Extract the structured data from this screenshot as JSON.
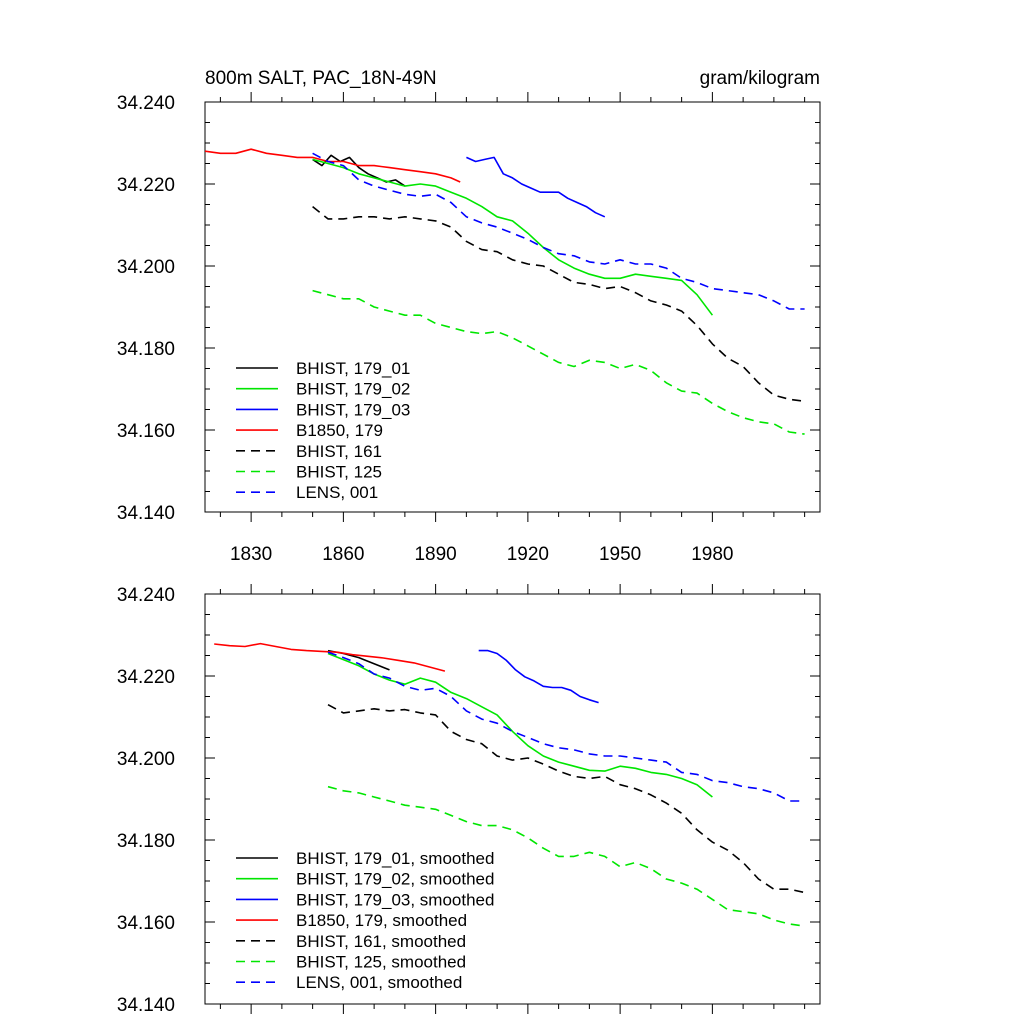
{
  "chart_data": [
    {
      "type": "line",
      "title_left": "800m SALT, PAC_18N-49N",
      "title_right": "gram/kilogram",
      "xlabel": "",
      "ylabel": "",
      "xlim": [
        1815,
        2015
      ],
      "ylim": [
        34.14,
        34.24
      ],
      "xticks": [
        1830,
        1860,
        1890,
        1920,
        1950,
        1980
      ],
      "xtick_labels": [
        "1830",
        "1860",
        "1890",
        "1920",
        "1950",
        "1980"
      ],
      "yticks": [
        34.14,
        34.16,
        34.18,
        34.2,
        34.22,
        34.24
      ],
      "ytick_labels": [
        "34.140",
        "34.160",
        "34.180",
        "34.200",
        "34.220",
        "34.240"
      ],
      "grid": false,
      "legend_position": "bottom-left",
      "series": [
        {
          "name": "BHIST, 179_01",
          "color": "#000000",
          "dash": "solid",
          "x": [
            1850,
            1853,
            1856,
            1859,
            1862,
            1865,
            1868,
            1871,
            1874,
            1877,
            1880
          ],
          "y": [
            34.226,
            34.2245,
            34.227,
            34.2255,
            34.2265,
            34.224,
            34.2225,
            34.2215,
            34.2205,
            34.221,
            34.2195
          ]
        },
        {
          "name": "BHIST, 179_02",
          "color": "#00e600",
          "dash": "solid",
          "x": [
            1850,
            1855,
            1860,
            1865,
            1870,
            1875,
            1880,
            1885,
            1890,
            1895,
            1900,
            1905,
            1910,
            1915,
            1920,
            1925,
            1930,
            1935,
            1940,
            1945,
            1950,
            1955,
            1960,
            1965,
            1970,
            1975,
            1980
          ],
          "y": [
            34.226,
            34.225,
            34.224,
            34.2225,
            34.2215,
            34.2205,
            34.2195,
            34.22,
            34.2195,
            34.218,
            34.2165,
            34.2145,
            34.212,
            34.211,
            34.208,
            34.2045,
            34.2015,
            34.1995,
            34.198,
            34.197,
            34.197,
            34.198,
            34.1975,
            34.197,
            34.1965,
            34.193,
            34.188
          ]
        },
        {
          "name": "BHIST, 179_03",
          "color": "#0000ff",
          "dash": "solid",
          "x": [
            1900,
            1903,
            1906,
            1909,
            1912,
            1915,
            1918,
            1921,
            1924,
            1927,
            1930,
            1933,
            1936,
            1939,
            1942,
            1945
          ],
          "y": [
            34.2265,
            34.2255,
            34.226,
            34.2265,
            34.2225,
            34.2215,
            34.22,
            34.219,
            34.218,
            34.218,
            34.218,
            34.2165,
            34.2155,
            34.2145,
            34.213,
            34.212
          ]
        },
        {
          "name": "B1850, 179",
          "color": "#ff0000",
          "dash": "solid",
          "x": [
            1815,
            1820,
            1825,
            1830,
            1835,
            1840,
            1845,
            1850,
            1855,
            1860,
            1865,
            1870,
            1875,
            1880,
            1885,
            1890,
            1895,
            1898
          ],
          "y": [
            34.228,
            34.2275,
            34.2275,
            34.2285,
            34.2275,
            34.227,
            34.2265,
            34.2265,
            34.2255,
            34.2255,
            34.2245,
            34.2245,
            34.224,
            34.2235,
            34.223,
            34.2225,
            34.2215,
            34.2205
          ]
        },
        {
          "name": "BHIST, 161",
          "color": "#000000",
          "dash": "dashed",
          "x": [
            1850,
            1855,
            1860,
            1865,
            1870,
            1875,
            1880,
            1885,
            1890,
            1895,
            1900,
            1905,
            1910,
            1915,
            1920,
            1925,
            1930,
            1935,
            1940,
            1945,
            1950,
            1955,
            1960,
            1965,
            1970,
            1975,
            1980,
            1985,
            1990,
            1995,
            2000,
            2005,
            2010
          ],
          "y": [
            34.2145,
            34.2115,
            34.2115,
            34.212,
            34.212,
            34.2115,
            34.212,
            34.2115,
            34.211,
            34.2095,
            34.206,
            34.204,
            34.2035,
            34.2015,
            34.2005,
            34.2,
            34.198,
            34.196,
            34.1955,
            34.1945,
            34.195,
            34.1935,
            34.1915,
            34.1905,
            34.189,
            34.1855,
            34.181,
            34.1775,
            34.1755,
            34.1715,
            34.1685,
            34.1675,
            34.167
          ]
        },
        {
          "name": "BHIST, 125",
          "color": "#00e600",
          "dash": "dashed",
          "x": [
            1850,
            1855,
            1860,
            1865,
            1870,
            1875,
            1880,
            1885,
            1890,
            1895,
            1900,
            1905,
            1910,
            1915,
            1920,
            1925,
            1930,
            1935,
            1940,
            1945,
            1950,
            1955,
            1960,
            1965,
            1970,
            1975,
            1980,
            1985,
            1990,
            1995,
            2000,
            2005,
            2010
          ],
          "y": [
            34.194,
            34.193,
            34.192,
            34.192,
            34.19,
            34.189,
            34.188,
            34.188,
            34.186,
            34.185,
            34.184,
            34.1835,
            34.184,
            34.1825,
            34.1805,
            34.1785,
            34.1765,
            34.1755,
            34.177,
            34.1765,
            34.175,
            34.176,
            34.1745,
            34.1715,
            34.1695,
            34.169,
            34.1665,
            34.1645,
            34.163,
            34.162,
            34.1615,
            34.1595,
            34.159
          ]
        },
        {
          "name": "LENS, 001",
          "color": "#0000ff",
          "dash": "dashed",
          "x": [
            1850,
            1855,
            1860,
            1865,
            1870,
            1875,
            1880,
            1885,
            1890,
            1895,
            1900,
            1905,
            1910,
            1915,
            1920,
            1925,
            1930,
            1935,
            1940,
            1945,
            1950,
            1955,
            1960,
            1965,
            1970,
            1975,
            1980,
            1985,
            1990,
            1995,
            2000,
            2005,
            2010
          ],
          "y": [
            34.2275,
            34.2255,
            34.2245,
            34.221,
            34.2195,
            34.2185,
            34.2175,
            34.217,
            34.2175,
            34.2155,
            34.212,
            34.2105,
            34.2095,
            34.208,
            34.2065,
            34.2045,
            34.203,
            34.2025,
            34.201,
            34.2005,
            34.2015,
            34.2005,
            34.2005,
            34.1995,
            34.197,
            34.196,
            34.1945,
            34.194,
            34.1935,
            34.193,
            34.1915,
            34.1895,
            34.1895
          ]
        }
      ]
    },
    {
      "type": "line",
      "title_left": "",
      "title_right": "",
      "xlabel": "",
      "ylabel": "",
      "xlim": [
        1815,
        2015
      ],
      "ylim": [
        34.14,
        34.24
      ],
      "xticks": [
        1830,
        1860,
        1890,
        1920,
        1950,
        1980
      ],
      "xtick_labels": [],
      "yticks": [
        34.14,
        34.16,
        34.18,
        34.2,
        34.22,
        34.24
      ],
      "ytick_labels": [
        "34.140",
        "34.160",
        "34.180",
        "34.200",
        "34.220",
        "34.240"
      ],
      "grid": false,
      "legend_position": "bottom-left",
      "series": [
        {
          "name": "BHIST, 179_01, smoothed",
          "color": "#000000",
          "dash": "solid",
          "x": [
            1855,
            1860,
            1865,
            1870,
            1875
          ],
          "y": [
            34.2262,
            34.2255,
            34.2245,
            34.223,
            34.2215
          ]
        },
        {
          "name": "BHIST, 179_02, smoothed",
          "color": "#00e600",
          "dash": "solid",
          "x": [
            1855,
            1860,
            1865,
            1870,
            1875,
            1880,
            1885,
            1890,
            1895,
            1900,
            1905,
            1910,
            1915,
            1920,
            1925,
            1930,
            1935,
            1940,
            1945,
            1950,
            1955,
            1960,
            1965,
            1970,
            1975,
            1980
          ],
          "y": [
            34.2255,
            34.224,
            34.2225,
            34.2205,
            34.219,
            34.218,
            34.2195,
            34.2185,
            34.216,
            34.2145,
            34.2125,
            34.2105,
            34.2065,
            34.203,
            34.2005,
            34.199,
            34.198,
            34.197,
            34.1968,
            34.198,
            34.1975,
            34.1965,
            34.196,
            34.195,
            34.1935,
            34.1905
          ]
        },
        {
          "name": "BHIST, 179_03, smoothed",
          "color": "#0000ff",
          "dash": "solid",
          "x": [
            1904,
            1907,
            1910,
            1913,
            1916,
            1919,
            1922,
            1925,
            1928,
            1931,
            1934,
            1937,
            1940,
            1943
          ],
          "y": [
            34.2262,
            34.2262,
            34.2255,
            34.2238,
            34.2215,
            34.2198,
            34.2188,
            34.2175,
            34.2172,
            34.2172,
            34.2165,
            34.215,
            34.2142,
            34.2135
          ]
        },
        {
          "name": "B1850, 179, smoothed",
          "color": "#ff0000",
          "dash": "solid",
          "x": [
            1818,
            1823,
            1828,
            1833,
            1838,
            1843,
            1848,
            1853,
            1858,
            1863,
            1868,
            1873,
            1878,
            1883,
            1888,
            1893
          ],
          "y": [
            34.2278,
            34.2274,
            34.2272,
            34.2279,
            34.2272,
            34.2265,
            34.2262,
            34.226,
            34.2258,
            34.2252,
            34.2248,
            34.2244,
            34.2238,
            34.2232,
            34.2222,
            34.2212
          ]
        },
        {
          "name": "BHIST, 161, smoothed",
          "color": "#000000",
          "dash": "dashed",
          "x": [
            1855,
            1860,
            1865,
            1870,
            1875,
            1880,
            1885,
            1890,
            1895,
            1900,
            1905,
            1910,
            1915,
            1920,
            1925,
            1930,
            1935,
            1940,
            1945,
            1950,
            1955,
            1960,
            1965,
            1970,
            1975,
            1980,
            1985,
            1990,
            1995,
            2000,
            2005,
            2010
          ],
          "y": [
            34.213,
            34.211,
            34.2115,
            34.212,
            34.2115,
            34.2118,
            34.211,
            34.2105,
            34.2065,
            34.2045,
            34.2035,
            34.2005,
            34.1995,
            34.2,
            34.1985,
            34.1968,
            34.1955,
            34.195,
            34.1955,
            34.1935,
            34.1925,
            34.191,
            34.189,
            34.1865,
            34.1825,
            34.1795,
            34.1775,
            34.1745,
            34.1705,
            34.168,
            34.168,
            34.1672
          ]
        },
        {
          "name": "BHIST, 125, smoothed",
          "color": "#00e600",
          "dash": "dashed",
          "x": [
            1855,
            1860,
            1865,
            1870,
            1875,
            1880,
            1885,
            1890,
            1895,
            1900,
            1905,
            1910,
            1915,
            1920,
            1925,
            1930,
            1935,
            1940,
            1945,
            1950,
            1955,
            1960,
            1965,
            1970,
            1975,
            1980,
            1985,
            1990,
            1995,
            2000,
            2005,
            2010
          ],
          "y": [
            34.193,
            34.192,
            34.1915,
            34.1905,
            34.1895,
            34.1885,
            34.188,
            34.1875,
            34.186,
            34.1845,
            34.1835,
            34.1835,
            34.1825,
            34.1805,
            34.178,
            34.176,
            34.176,
            34.177,
            34.176,
            34.1735,
            34.1745,
            34.173,
            34.1705,
            34.1695,
            34.168,
            34.1655,
            34.163,
            34.1625,
            34.162,
            34.1605,
            34.1595,
            34.159
          ]
        },
        {
          "name": "LENS, 001, smoothed",
          "color": "#0000ff",
          "dash": "dashed",
          "x": [
            1855,
            1860,
            1865,
            1870,
            1875,
            1880,
            1885,
            1890,
            1895,
            1900,
            1905,
            1910,
            1915,
            1920,
            1925,
            1930,
            1935,
            1940,
            1945,
            1950,
            1955,
            1960,
            1965,
            1970,
            1975,
            1980,
            1985,
            1990,
            1995,
            2000,
            2005,
            2010
          ],
          "y": [
            34.2258,
            34.2245,
            34.223,
            34.2205,
            34.2195,
            34.2175,
            34.2165,
            34.217,
            34.215,
            34.2115,
            34.2095,
            34.2085,
            34.2065,
            34.205,
            34.2035,
            34.2025,
            34.202,
            34.201,
            34.2005,
            34.2005,
            34.2,
            34.1995,
            34.199,
            34.1965,
            34.196,
            34.1945,
            34.194,
            34.193,
            34.1925,
            34.1915,
            34.1895,
            34.1895
          ]
        }
      ]
    }
  ]
}
